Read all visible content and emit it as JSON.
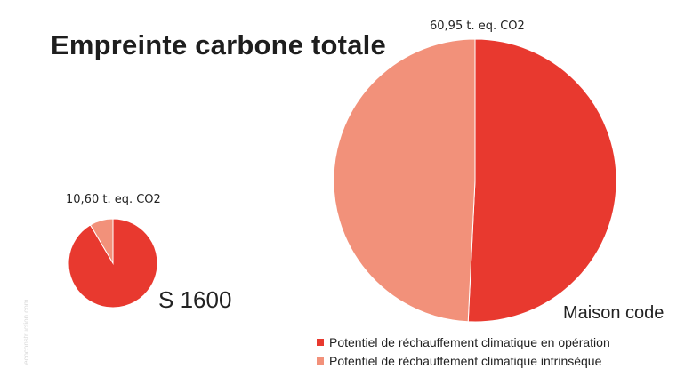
{
  "colors": {
    "operation": "#e8392f",
    "intrinseque": "#f2917a",
    "edge": "#ffffff"
  },
  "watermark": "ecoconstruction.com",
  "chart_data": {
    "type": "pie",
    "title": "Empreinte carbone totale",
    "legend_position": "bottom-right",
    "legend": [
      "Potentiel de réchauffement climatique en opération",
      "Potentiel de réchauffement climatique intrinsèque"
    ],
    "pies": [
      {
        "name": "S 1600",
        "total_label": "10,60 t. eq. CO2",
        "total": 10.6,
        "slices": [
          {
            "series": "Potentiel de réchauffement climatique en opération",
            "value": 9.7
          },
          {
            "series": "Potentiel de réchauffement climatique intrinsèque",
            "value": 0.9
          }
        ]
      },
      {
        "name": "Maison code",
        "total_label": "60,95 t. eq. CO2",
        "total": 60.95,
        "slices": [
          {
            "series": "Potentiel de réchauffement climatique en opération",
            "value": 30.95
          },
          {
            "series": "Potentiel de réchauffement climatique intrinsèque",
            "value": 30.0
          }
        ]
      }
    ]
  }
}
